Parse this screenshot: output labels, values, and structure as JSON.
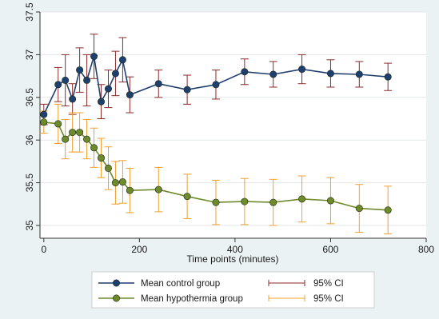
{
  "chart_data": {
    "type": "line",
    "title": "",
    "xlabel": "Time points (minutes)",
    "ylabel": "",
    "xlim": [
      -8,
      800
    ],
    "ylim": [
      34.85,
      37.5
    ],
    "xticks": [
      "0",
      "200",
      "400",
      "600",
      "800"
    ],
    "xtick_values": [
      0,
      200,
      400,
      600,
      800
    ],
    "yticks": [
      "35",
      "35.5",
      "36",
      "36.5",
      "37",
      "37.5"
    ],
    "ytick_values": [
      35,
      35.5,
      36,
      36.5,
      37,
      37.5
    ],
    "grid": true,
    "legend_position": "bottom",
    "series": [
      {
        "name": "Mean control group",
        "ci_name": "95% CI",
        "color": "#1f3f6e",
        "ci_color": "#8a2a2a",
        "points": [
          {
            "x": 0,
            "y": 36.3,
            "lo": 36.18,
            "hi": 36.42
          },
          {
            "x": 30,
            "y": 36.65,
            "lo": 36.45,
            "hi": 36.85
          },
          {
            "x": 45,
            "y": 36.7,
            "lo": 36.4,
            "hi": 37.0
          },
          {
            "x": 60,
            "y": 36.48,
            "lo": 36.3,
            "hi": 36.66
          },
          {
            "x": 75,
            "y": 36.82,
            "lo": 36.56,
            "hi": 37.08
          },
          {
            "x": 90,
            "y": 36.7,
            "lo": 36.4,
            "hi": 37.0
          },
          {
            "x": 105,
            "y": 36.98,
            "lo": 36.72,
            "hi": 37.24
          },
          {
            "x": 120,
            "y": 36.45,
            "lo": 36.25,
            "hi": 36.65
          },
          {
            "x": 135,
            "y": 36.6,
            "lo": 36.38,
            "hi": 36.82
          },
          {
            "x": 150,
            "y": 36.78,
            "lo": 36.52,
            "hi": 37.04
          },
          {
            "x": 165,
            "y": 36.94,
            "lo": 36.68,
            "hi": 37.2
          },
          {
            "x": 180,
            "y": 36.53,
            "lo": 36.32,
            "hi": 36.74
          },
          {
            "x": 240,
            "y": 36.66,
            "lo": 36.5,
            "hi": 36.82
          },
          {
            "x": 300,
            "y": 36.59,
            "lo": 36.42,
            "hi": 36.76
          },
          {
            "x": 360,
            "y": 36.65,
            "lo": 36.48,
            "hi": 36.82
          },
          {
            "x": 420,
            "y": 36.8,
            "lo": 36.65,
            "hi": 36.95
          },
          {
            "x": 480,
            "y": 36.77,
            "lo": 36.62,
            "hi": 36.92
          },
          {
            "x": 540,
            "y": 36.83,
            "lo": 36.66,
            "hi": 37.0
          },
          {
            "x": 600,
            "y": 36.78,
            "lo": 36.62,
            "hi": 36.94
          },
          {
            "x": 660,
            "y": 36.77,
            "lo": 36.62,
            "hi": 36.92
          },
          {
            "x": 720,
            "y": 36.74,
            "lo": 36.58,
            "hi": 36.9
          }
        ]
      },
      {
        "name": "Mean hypothermia group",
        "ci_name": "95% CI",
        "color": "#6f8a2a",
        "ci_color": "#f0a030",
        "points": [
          {
            "x": 0,
            "y": 36.21,
            "lo": 36.08,
            "hi": 36.34
          },
          {
            "x": 30,
            "y": 36.19,
            "lo": 35.96,
            "hi": 36.42
          },
          {
            "x": 45,
            "y": 36.01,
            "lo": 35.78,
            "hi": 36.24
          },
          {
            "x": 60,
            "y": 36.09,
            "lo": 35.86,
            "hi": 36.32
          },
          {
            "x": 75,
            "y": 36.09,
            "lo": 35.86,
            "hi": 36.32
          },
          {
            "x": 90,
            "y": 36.01,
            "lo": 35.78,
            "hi": 36.24
          },
          {
            "x": 105,
            "y": 35.91,
            "lo": 35.68,
            "hi": 36.14
          },
          {
            "x": 120,
            "y": 35.79,
            "lo": 35.56,
            "hi": 36.02
          },
          {
            "x": 135,
            "y": 35.67,
            "lo": 35.42,
            "hi": 35.92
          },
          {
            "x": 150,
            "y": 35.5,
            "lo": 35.25,
            "hi": 35.75
          },
          {
            "x": 165,
            "y": 35.51,
            "lo": 35.26,
            "hi": 35.76
          },
          {
            "x": 180,
            "y": 35.41,
            "lo": 35.15,
            "hi": 35.67
          },
          {
            "x": 240,
            "y": 35.42,
            "lo": 35.16,
            "hi": 35.68
          },
          {
            "x": 300,
            "y": 35.34,
            "lo": 35.08,
            "hi": 35.6
          },
          {
            "x": 360,
            "y": 35.27,
            "lo": 35.01,
            "hi": 35.53
          },
          {
            "x": 420,
            "y": 35.28,
            "lo": 35.01,
            "hi": 35.55
          },
          {
            "x": 480,
            "y": 35.27,
            "lo": 35.0,
            "hi": 35.54
          },
          {
            "x": 540,
            "y": 35.31,
            "lo": 35.04,
            "hi": 35.58
          },
          {
            "x": 600,
            "y": 35.29,
            "lo": 35.02,
            "hi": 35.56
          },
          {
            "x": 660,
            "y": 35.2,
            "lo": 34.92,
            "hi": 35.48
          },
          {
            "x": 720,
            "y": 35.18,
            "lo": 34.9,
            "hi": 35.46
          }
        ]
      }
    ]
  }
}
